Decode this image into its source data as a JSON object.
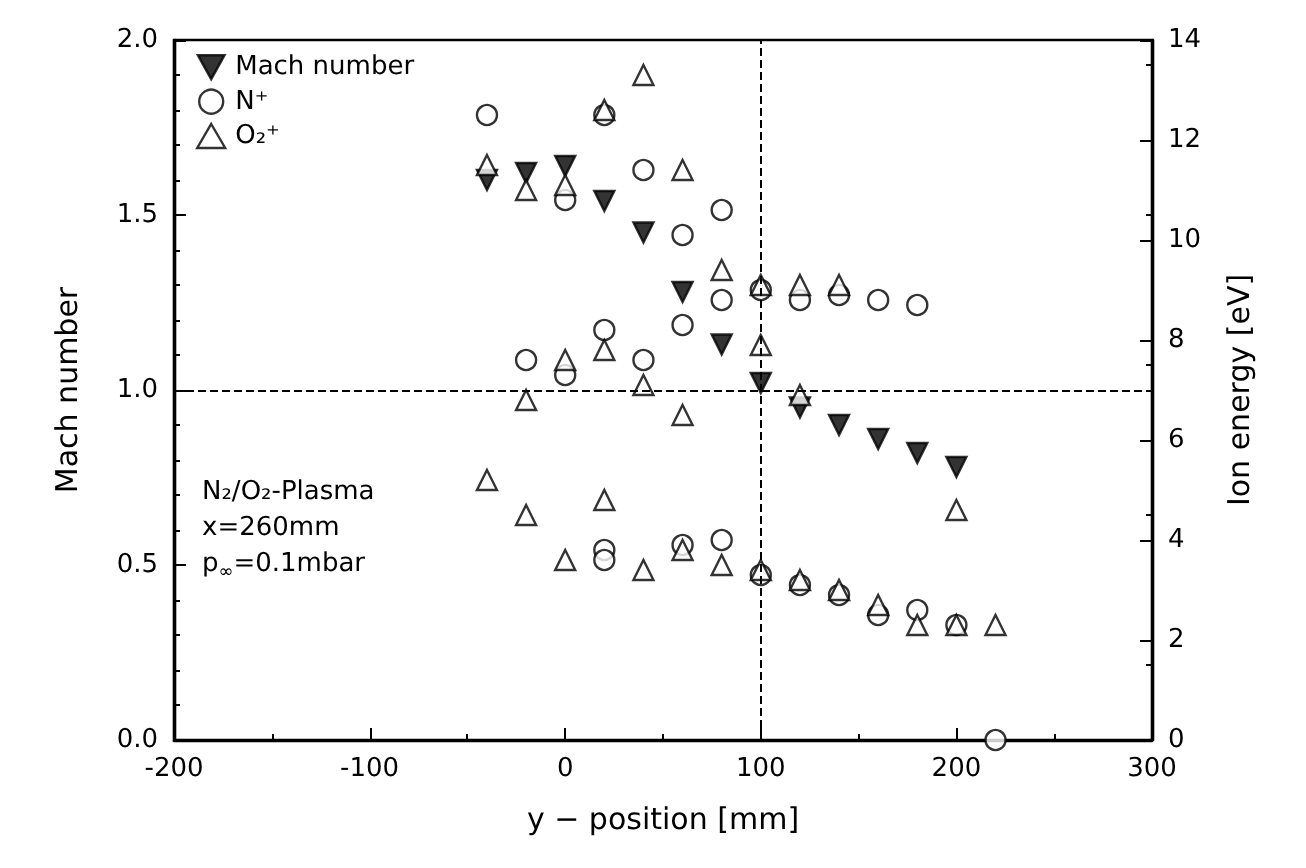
{
  "chart_data": {
    "type": "scatter",
    "xlabel": "y − position [mm]",
    "ylabel": "Mach number",
    "y2label": "Ion energy [eV]",
    "xlim": [
      -200,
      300
    ],
    "xticks": [
      -200,
      -100,
      0,
      100,
      200,
      300
    ],
    "ylim": [
      0,
      2
    ],
    "yticks": [
      {
        "value": 0,
        "label": "0.0"
      },
      0.5,
      {
        "value": 1,
        "label": "1.0"
      },
      1.5,
      {
        "value": 2,
        "label": "2.0"
      }
    ],
    "y2lim": [
      0,
      14
    ],
    "y2ticks": [
      0,
      2,
      4,
      6,
      8,
      10,
      12,
      14
    ],
    "grid": false,
    "legend": "top left",
    "series": [
      {
        "name": "Mach number",
        "color": "#000000",
        "marker": "triangle-down",
        "x": [
          -40,
          -20,
          0,
          20,
          40,
          60,
          80,
          100,
          120,
          140,
          160,
          180,
          200
        ],
        "values": [
          1.6,
          1.62,
          1.64,
          1.54,
          1.45,
          1.28,
          1.13,
          1.02,
          0.95,
          0.9,
          0.86,
          0.82,
          0.78
        ]
      },
      {
        "name": "N⁺",
        "color": "#000000",
        "marker": "circle",
        "axis": "y2",
        "x": [
          -40,
          0,
          20,
          40,
          60,
          80,
          80,
          100,
          120,
          140,
          160,
          180,
          -20,
          0,
          20,
          40,
          60,
          20,
          20,
          60,
          80,
          100,
          120,
          140,
          160,
          180,
          200,
          220
        ],
        "values": [
          12.5,
          10.8,
          12.5,
          11.4,
          10.1,
          10.6,
          8.8,
          9.0,
          8.8,
          8.9,
          8.8,
          8.7,
          7.6,
          7.3,
          8.2,
          7.6,
          8.3,
          3.8,
          3.6,
          3.9,
          4.0,
          3.3,
          3.1,
          2.9,
          2.5,
          2.6,
          2.3,
          0
        ]
      },
      {
        "name": "O₂⁺",
        "color": "#000000",
        "marker": "triangle",
        "axis": "y2",
        "x": [
          -40,
          -20,
          0,
          20,
          40,
          60,
          80,
          100,
          120,
          140,
          -20,
          0,
          20,
          40,
          60,
          100,
          120,
          200,
          -40,
          -20,
          0,
          20,
          40,
          60,
          80,
          100,
          120,
          140,
          160,
          180,
          200,
          220
        ],
        "values": [
          11.5,
          11.0,
          11.1,
          12.6,
          13.3,
          11.4,
          9.4,
          9.1,
          9.1,
          9.1,
          6.8,
          7.6,
          7.8,
          7.1,
          6.5,
          7.9,
          6.9,
          4.6,
          5.2,
          4.5,
          3.6,
          4.8,
          3.4,
          3.8,
          3.5,
          3.4,
          3.2,
          3.0,
          2.7,
          2.3,
          2.3,
          2.3
        ]
      }
    ],
    "ref_lines": [
      {
        "axis": "y",
        "value": 1.0,
        "line_style": "dashed"
      },
      {
        "axis": "x",
        "value": 100,
        "line_style": "dashed"
      }
    ],
    "annotations": [
      "N₂/O₂-Plasma",
      "x=260mm",
      "p$_{∞}$=0.1mbar"
    ]
  }
}
